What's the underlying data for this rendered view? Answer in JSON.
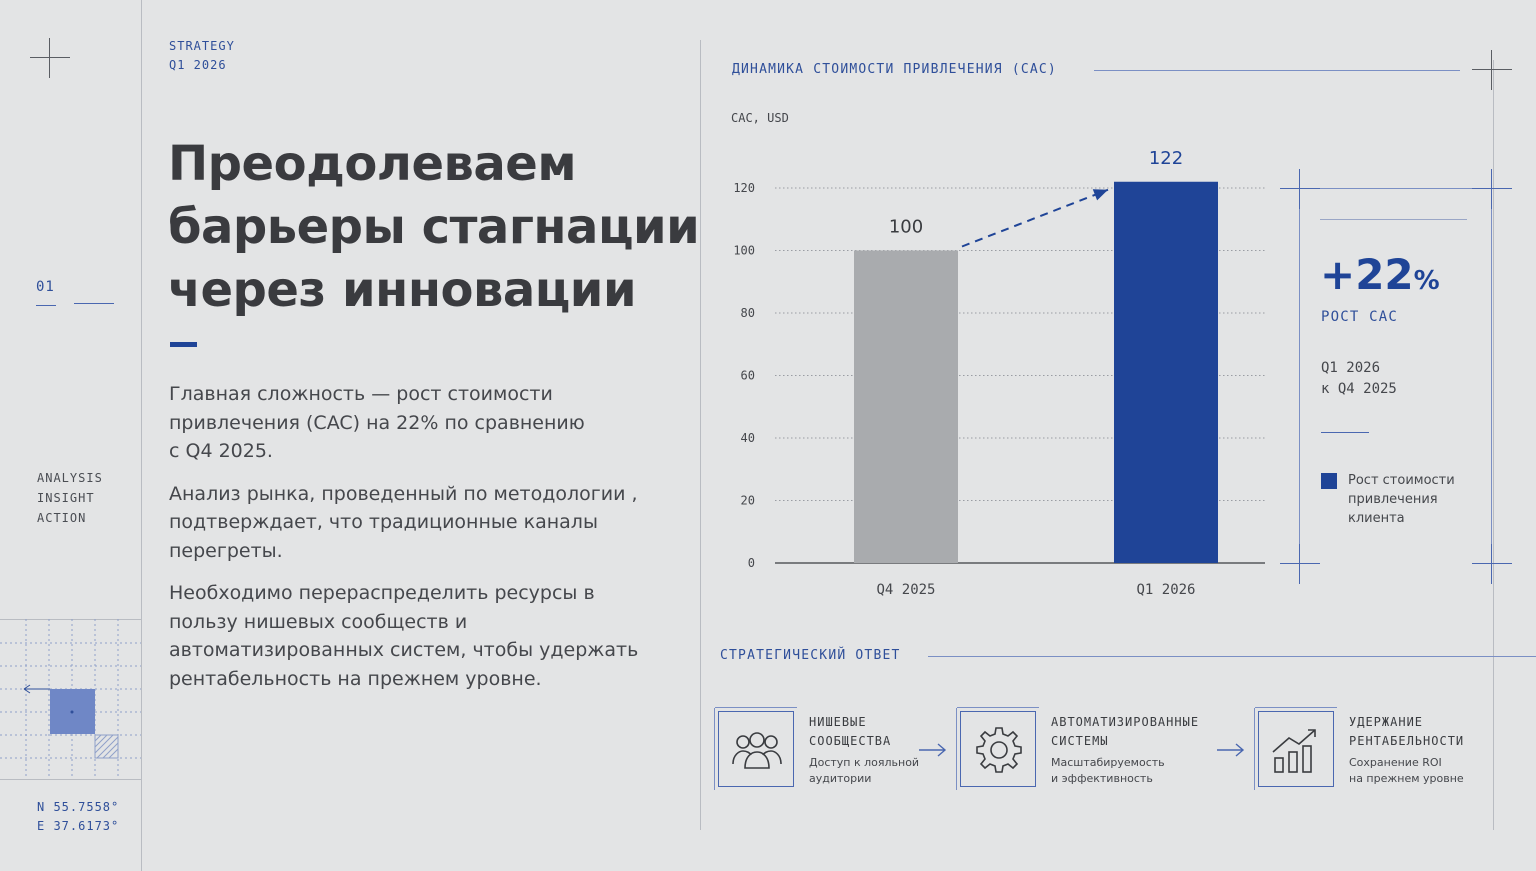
{
  "rail": {
    "section_number": "01",
    "tags": [
      "ANALYSIS",
      "INSIGHT",
      "ACTION"
    ],
    "coords": [
      "N 55.7558°",
      "E 37.6173°"
    ]
  },
  "header": {
    "kicker_line1": "STRATEGY",
    "kicker_line2": "Q1 2026"
  },
  "main": {
    "headline_lines": [
      "Преодолеваем",
      "барьеры стагнации",
      "через инновации"
    ],
    "paragraphs": [
      "Главная сложность — рост стоимости привлечения (CAC) на 22% по сравнению с Q4 2025.",
      "Анализ рынка, проведенный по методологии , подтверждает, что традиционные каналы перегреты.",
      "Необходимо перераспределить ресурсы в пользу нишевых сообществ и автоматизированных систем, чтобы удержать рентабельность на прежнем уровне."
    ]
  },
  "chart_data": {
    "type": "bar",
    "title": "ДИНАМИКА СТОИМОСТИ ПРИВЛЕЧЕНИЯ (CAC)",
    "ylabel": "CAC, USD",
    "xlabel": "",
    "categories": [
      "Q4 2025",
      "Q1 2026"
    ],
    "values": [
      100,
      122
    ],
    "data_labels": [
      "100",
      "122"
    ],
    "yticks": [
      0,
      20,
      40,
      60,
      80,
      100,
      120
    ],
    "ylim": [
      0,
      120
    ],
    "grid": true,
    "colors": [
      "#a9abae",
      "#1f4497"
    ],
    "annotation": "dashed arrow from Q4 2025 to Q1 2026"
  },
  "stats": {
    "value": "+22",
    "unit": "%",
    "label": "РОСТ CAC",
    "period_line1": "Q1 2026",
    "period_line2": "к Q4 2025",
    "legend_lines": [
      "Рост стоимости",
      "привлечения",
      "клиента"
    ],
    "legend_color": "#1f4497"
  },
  "strategy": {
    "title": "СТРАТЕГИЧЕСКИЙ ОТВЕТ",
    "steps": [
      {
        "icon": "people-icon",
        "title_lines": [
          "НИШЕВЫЕ",
          "СООБЩЕСТВА"
        ],
        "desc_lines": [
          "Доступ к лояльной",
          "аудитории"
        ]
      },
      {
        "icon": "gear-icon",
        "title_lines": [
          "АВТОМАТИЗИРОВАННЫЕ",
          "СИСТЕМЫ"
        ],
        "desc_lines": [
          "Масштабируемость",
          "и эффективность"
        ]
      },
      {
        "icon": "growth-chart-icon",
        "title_lines": [
          "УДЕРЖАНИЕ",
          "РЕНТАБЕЛЬНОСТИ"
        ],
        "desc_lines": [
          "Сохранение ROI",
          "на прежнем уровне"
        ]
      }
    ]
  }
}
